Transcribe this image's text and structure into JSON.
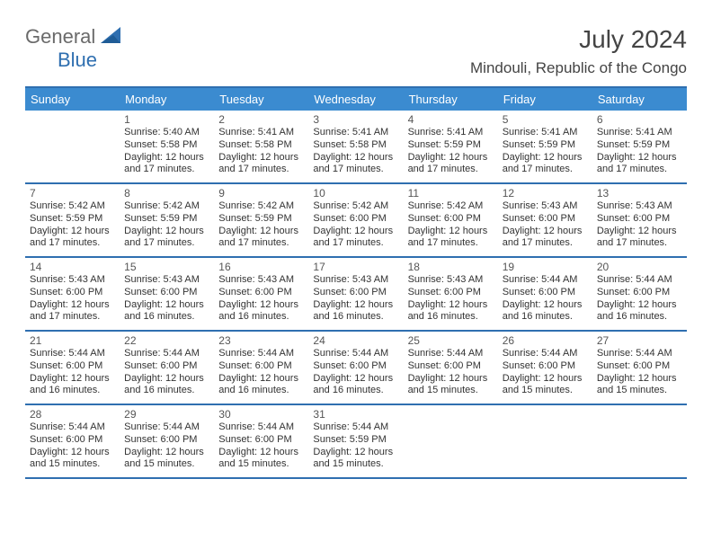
{
  "logo": {
    "part1": "General",
    "part2": "Blue"
  },
  "title": "July 2024",
  "location": "Mindouli, Republic of the Congo",
  "colors": {
    "header_bg": "#3b8bd0",
    "rule": "#2f6fb0",
    "logo_gray": "#6a6a6a",
    "logo_blue": "#2f6fb0",
    "text": "#333333",
    "bg": "#ffffff"
  },
  "day_headers": [
    "Sunday",
    "Monday",
    "Tuesday",
    "Wednesday",
    "Thursday",
    "Friday",
    "Saturday"
  ],
  "weeks": [
    [
      {
        "num": "",
        "sr": "",
        "ss": "",
        "dl": ""
      },
      {
        "num": "1",
        "sr": "5:40 AM",
        "ss": "5:58 PM",
        "dl": "12 hours and 17 minutes."
      },
      {
        "num": "2",
        "sr": "5:41 AM",
        "ss": "5:58 PM",
        "dl": "12 hours and 17 minutes."
      },
      {
        "num": "3",
        "sr": "5:41 AM",
        "ss": "5:58 PM",
        "dl": "12 hours and 17 minutes."
      },
      {
        "num": "4",
        "sr": "5:41 AM",
        "ss": "5:59 PM",
        "dl": "12 hours and 17 minutes."
      },
      {
        "num": "5",
        "sr": "5:41 AM",
        "ss": "5:59 PM",
        "dl": "12 hours and 17 minutes."
      },
      {
        "num": "6",
        "sr": "5:41 AM",
        "ss": "5:59 PM",
        "dl": "12 hours and 17 minutes."
      }
    ],
    [
      {
        "num": "7",
        "sr": "5:42 AM",
        "ss": "5:59 PM",
        "dl": "12 hours and 17 minutes."
      },
      {
        "num": "8",
        "sr": "5:42 AM",
        "ss": "5:59 PM",
        "dl": "12 hours and 17 minutes."
      },
      {
        "num": "9",
        "sr": "5:42 AM",
        "ss": "5:59 PM",
        "dl": "12 hours and 17 minutes."
      },
      {
        "num": "10",
        "sr": "5:42 AM",
        "ss": "6:00 PM",
        "dl": "12 hours and 17 minutes."
      },
      {
        "num": "11",
        "sr": "5:42 AM",
        "ss": "6:00 PM",
        "dl": "12 hours and 17 minutes."
      },
      {
        "num": "12",
        "sr": "5:43 AM",
        "ss": "6:00 PM",
        "dl": "12 hours and 17 minutes."
      },
      {
        "num": "13",
        "sr": "5:43 AM",
        "ss": "6:00 PM",
        "dl": "12 hours and 17 minutes."
      }
    ],
    [
      {
        "num": "14",
        "sr": "5:43 AM",
        "ss": "6:00 PM",
        "dl": "12 hours and 17 minutes."
      },
      {
        "num": "15",
        "sr": "5:43 AM",
        "ss": "6:00 PM",
        "dl": "12 hours and 16 minutes."
      },
      {
        "num": "16",
        "sr": "5:43 AM",
        "ss": "6:00 PM",
        "dl": "12 hours and 16 minutes."
      },
      {
        "num": "17",
        "sr": "5:43 AM",
        "ss": "6:00 PM",
        "dl": "12 hours and 16 minutes."
      },
      {
        "num": "18",
        "sr": "5:43 AM",
        "ss": "6:00 PM",
        "dl": "12 hours and 16 minutes."
      },
      {
        "num": "19",
        "sr": "5:44 AM",
        "ss": "6:00 PM",
        "dl": "12 hours and 16 minutes."
      },
      {
        "num": "20",
        "sr": "5:44 AM",
        "ss": "6:00 PM",
        "dl": "12 hours and 16 minutes."
      }
    ],
    [
      {
        "num": "21",
        "sr": "5:44 AM",
        "ss": "6:00 PM",
        "dl": "12 hours and 16 minutes."
      },
      {
        "num": "22",
        "sr": "5:44 AM",
        "ss": "6:00 PM",
        "dl": "12 hours and 16 minutes."
      },
      {
        "num": "23",
        "sr": "5:44 AM",
        "ss": "6:00 PM",
        "dl": "12 hours and 16 minutes."
      },
      {
        "num": "24",
        "sr": "5:44 AM",
        "ss": "6:00 PM",
        "dl": "12 hours and 16 minutes."
      },
      {
        "num": "25",
        "sr": "5:44 AM",
        "ss": "6:00 PM",
        "dl": "12 hours and 15 minutes."
      },
      {
        "num": "26",
        "sr": "5:44 AM",
        "ss": "6:00 PM",
        "dl": "12 hours and 15 minutes."
      },
      {
        "num": "27",
        "sr": "5:44 AM",
        "ss": "6:00 PM",
        "dl": "12 hours and 15 minutes."
      }
    ],
    [
      {
        "num": "28",
        "sr": "5:44 AM",
        "ss": "6:00 PM",
        "dl": "12 hours and 15 minutes."
      },
      {
        "num": "29",
        "sr": "5:44 AM",
        "ss": "6:00 PM",
        "dl": "12 hours and 15 minutes."
      },
      {
        "num": "30",
        "sr": "5:44 AM",
        "ss": "6:00 PM",
        "dl": "12 hours and 15 minutes."
      },
      {
        "num": "31",
        "sr": "5:44 AM",
        "ss": "5:59 PM",
        "dl": "12 hours and 15 minutes."
      },
      {
        "num": "",
        "sr": "",
        "ss": "",
        "dl": ""
      },
      {
        "num": "",
        "sr": "",
        "ss": "",
        "dl": ""
      },
      {
        "num": "",
        "sr": "",
        "ss": "",
        "dl": ""
      }
    ]
  ],
  "labels": {
    "sunrise": "Sunrise: ",
    "sunset": "Sunset: ",
    "daylight": "Daylight: "
  }
}
